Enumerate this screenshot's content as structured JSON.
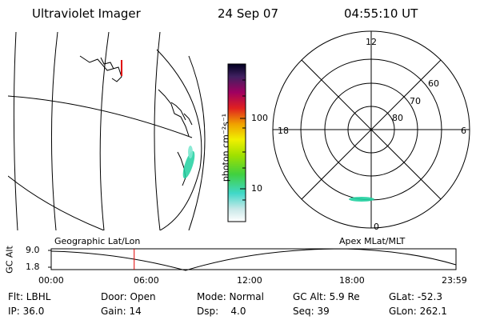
{
  "header": {
    "title": "Ultraviolet Imager",
    "date": "24 Sep 07",
    "time": "04:55:10 UT"
  },
  "colorbar": {
    "unit_label": "photon cm⁻²s⁻¹",
    "ticks": [
      "100",
      "10"
    ]
  },
  "polar": {
    "labels": [
      "12",
      "60",
      "70",
      "80",
      "18",
      "6",
      "0"
    ]
  },
  "timeline": {
    "left_label": "Geographic Lat/Lon",
    "right_label": "Apex MLat/MLT",
    "y_title": "GC Alt",
    "y_max": "9.0",
    "y_min": "1.8",
    "x_ticks": [
      "00:00",
      "06:00",
      "12:00",
      "18:00",
      "23:59"
    ],
    "current_time_fraction": 0.205
  },
  "status": {
    "filter": "Flt: LBHL",
    "door": "Door: Open",
    "mode": "Mode: Normal",
    "gc_alt": "GC Alt: 5.9 Re",
    "glat": "GLat: -52.3",
    "ip": "IP: 36.0",
    "gain": "Gain: 14",
    "dsp": "Dsp:    4.0",
    "seq": "Seq: 39",
    "glon": "GLon: 262.1"
  },
  "colors": {
    "marker": "#e00000",
    "aurora": "#20d0a0"
  }
}
